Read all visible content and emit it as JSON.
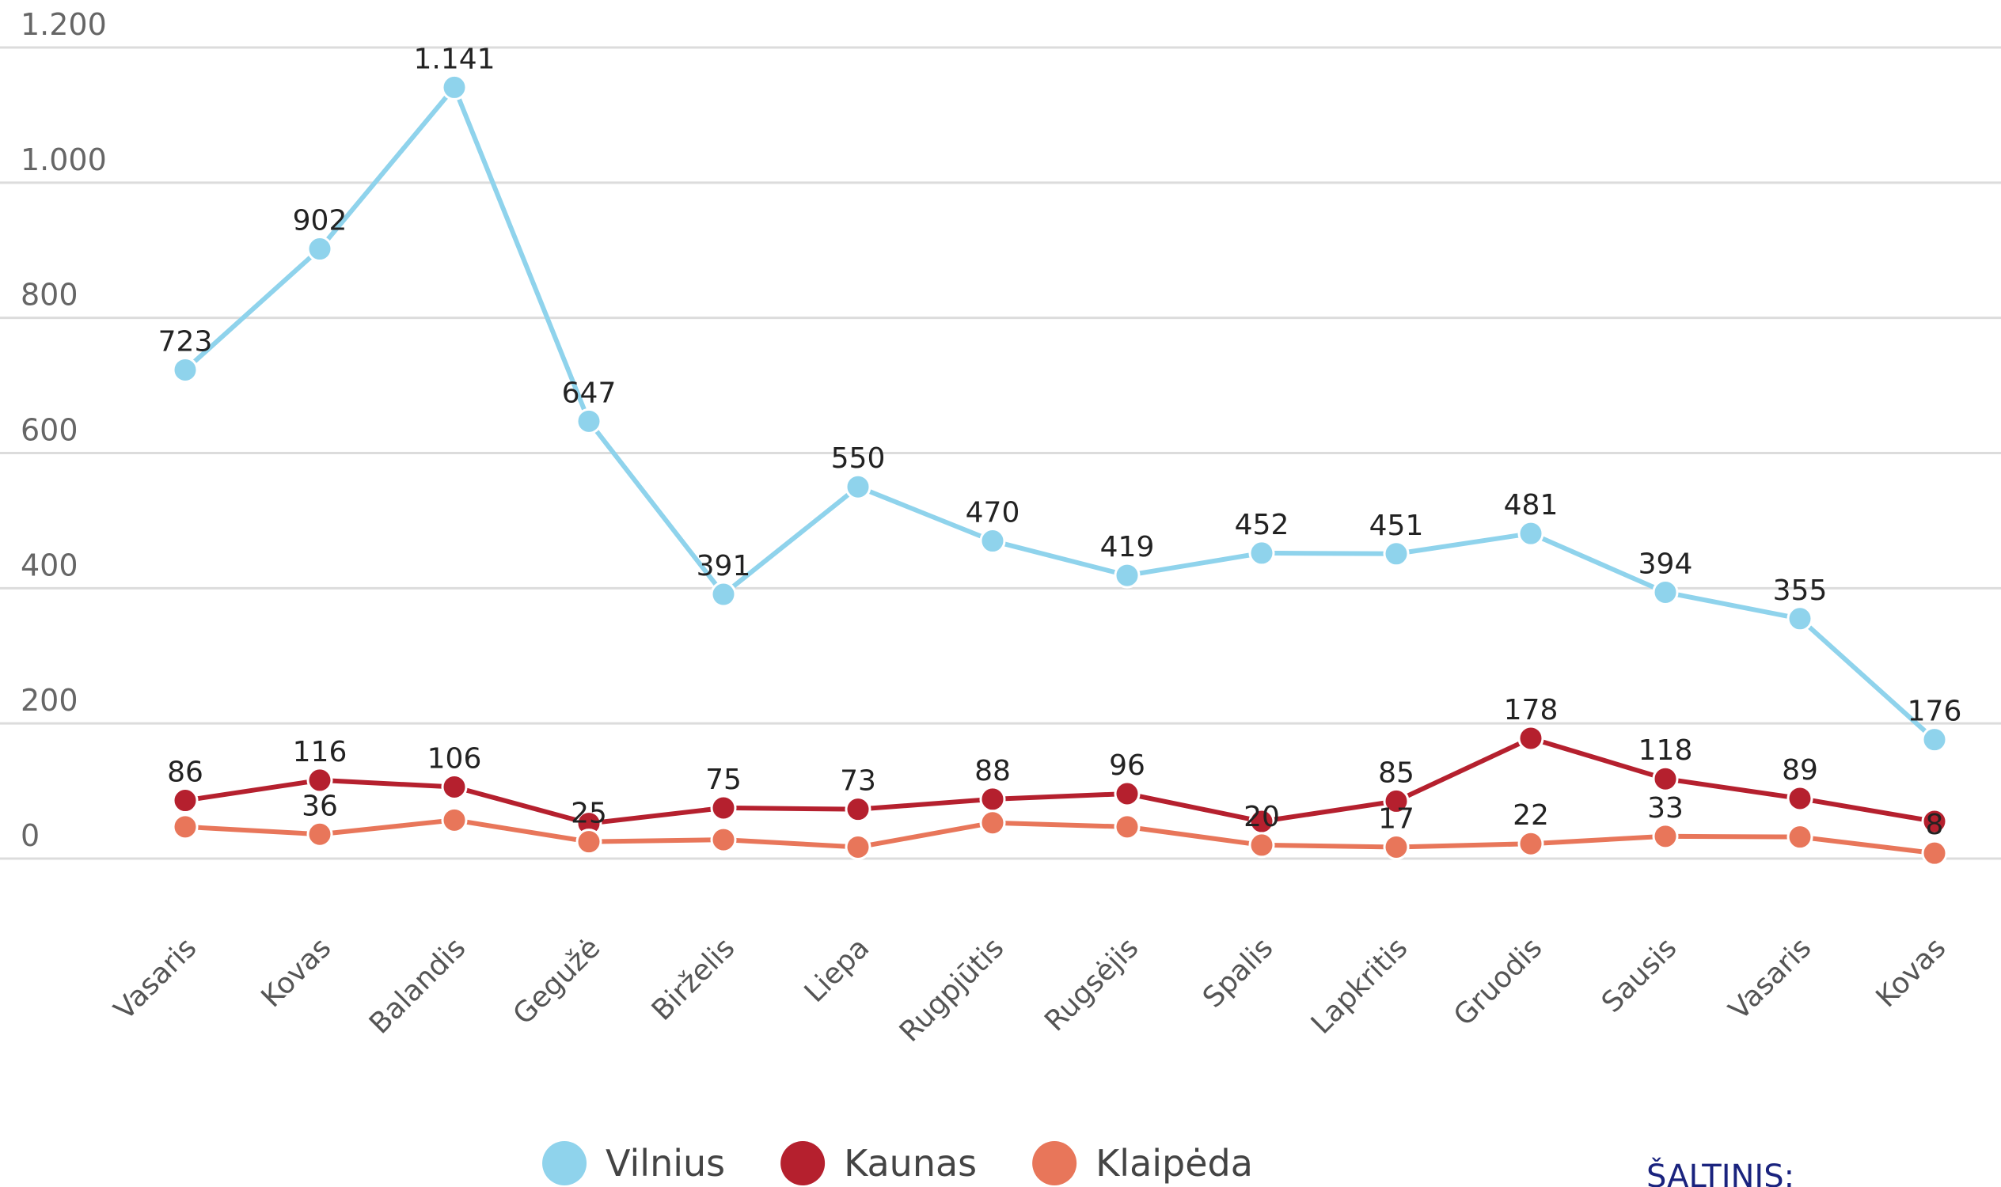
{
  "chart_data": {
    "type": "line",
    "categories": [
      "Vasaris",
      "Kovas",
      "Balandis",
      "Gegužė",
      "Birželis",
      "Liepa",
      "Rugpjūtis",
      "Rugsėjis",
      "Spalis",
      "Lapkritis",
      "Gruodis",
      "Sausis",
      "Vasaris",
      "Kovas"
    ],
    "series": [
      {
        "name": "Vilnius",
        "color": "#8fd3ec",
        "values": [
          723,
          902,
          1141,
          647,
          391,
          550,
          470,
          419,
          452,
          451,
          481,
          394,
          355,
          176
        ],
        "value_labels": [
          "723",
          "902",
          "1.141",
          "647",
          "391",
          "550",
          "470",
          "419",
          "452",
          "451",
          "481",
          "394",
          "355",
          "176"
        ]
      },
      {
        "name": "Kaunas",
        "color": "#b5202e",
        "values": [
          86,
          116,
          106,
          52,
          75,
          73,
          88,
          96,
          55,
          85,
          178,
          118,
          89,
          55
        ],
        "value_labels": [
          "86",
          "116",
          "106",
          null,
          "75",
          "73",
          "88",
          "96",
          null,
          "85",
          "178",
          "118",
          "89",
          null
        ]
      },
      {
        "name": "Klaipėda",
        "color": "#e8765a",
        "values": [
          47,
          36,
          57,
          25,
          28,
          17,
          53,
          47,
          20,
          17,
          22,
          33,
          32,
          8
        ],
        "value_labels": [
          null,
          "36",
          null,
          "25",
          null,
          null,
          null,
          null,
          "20",
          "17",
          "22",
          "33",
          null,
          "8"
        ]
      }
    ],
    "ylim": [
      0,
      1200
    ],
    "yticks": [
      0,
      200,
      400,
      600,
      800,
      {
        "value": 1000,
        "label": "1.000"
      },
      {
        "value": 1200,
        "label": "1.200"
      }
    ],
    "grid": true,
    "legend": "bottom",
    "source": "ŠALTINIS:"
  }
}
